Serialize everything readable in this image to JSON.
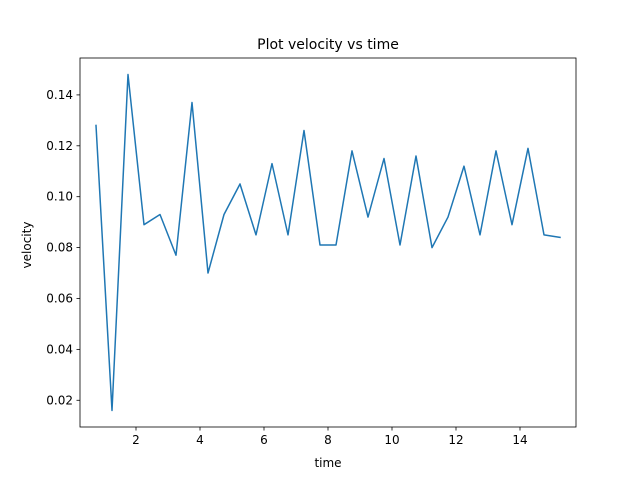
{
  "chart_data": {
    "type": "line",
    "title": "Plot velocity vs time",
    "xlabel": "time",
    "ylabel": "velocity",
    "xlim": [
      0.25,
      15.75
    ],
    "ylim": [
      0.0095,
      0.1545
    ],
    "xticks": [
      2,
      4,
      6,
      8,
      10,
      12,
      14
    ],
    "yticks": [
      0.02,
      0.04,
      0.06,
      0.08,
      0.1,
      0.12,
      0.14
    ],
    "xtick_labels": [
      "2",
      "4",
      "6",
      "8",
      "10",
      "12",
      "14"
    ],
    "ytick_labels": [
      "0.02",
      "0.04",
      "0.06",
      "0.08",
      "0.10",
      "0.12",
      "0.14"
    ],
    "grid": false,
    "series": [
      {
        "color": "#1f77b4",
        "x": [
          0.75,
          1.25,
          1.75,
          2.25,
          2.75,
          3.25,
          3.75,
          4.25,
          4.75,
          5.25,
          5.75,
          6.25,
          6.75,
          7.25,
          7.75,
          8.25,
          8.75,
          9.25,
          9.75,
          10.25,
          10.75,
          11.25,
          11.75,
          12.25,
          12.75,
          13.25,
          13.75,
          14.25,
          14.75,
          15.25
        ],
        "y": [
          0.128,
          0.016,
          0.148,
          0.089,
          0.093,
          0.077,
          0.137,
          0.07,
          0.093,
          0.105,
          0.085,
          0.113,
          0.085,
          0.126,
          0.081,
          0.081,
          0.118,
          0.092,
          0.115,
          0.081,
          0.116,
          0.08,
          0.092,
          0.112,
          0.085,
          0.118,
          0.089,
          0.119,
          0.085,
          0.084
        ]
      }
    ]
  }
}
